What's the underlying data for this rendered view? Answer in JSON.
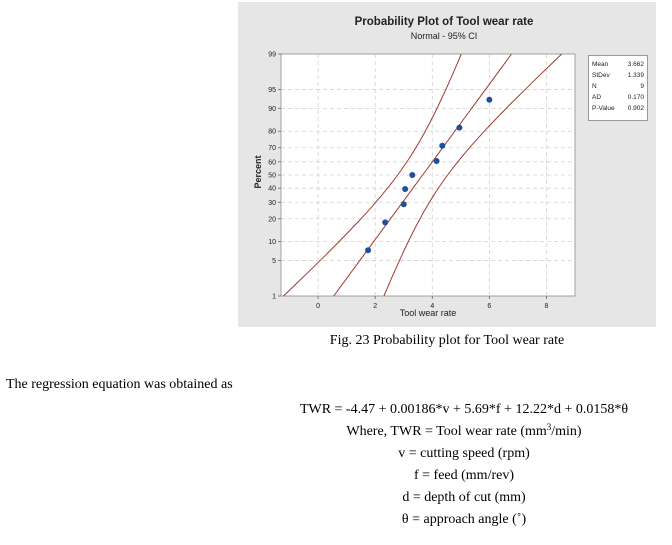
{
  "chart_data": {
    "type": "scatter",
    "title": "Probability Plot of Tool wear rate",
    "subtitle": "Normal - 95% CI",
    "xlabel": "Tool wear rate",
    "ylabel": "Percent",
    "x_ticks": [
      "0",
      "2",
      "4",
      "6",
      "8"
    ],
    "y_ticks": [
      "1",
      "5",
      "10",
      "20",
      "30",
      "40",
      "50",
      "60",
      "70",
      "80",
      "90",
      "95",
      "99"
    ],
    "xlim": [
      -1.3,
      9.0
    ],
    "ylim": [
      1,
      99
    ],
    "y_scale": "normal probability",
    "grid": true,
    "points": [
      {
        "x": 1.75,
        "y": 7.4
      },
      {
        "x": 2.35,
        "y": 18.1
      },
      {
        "x": 3.0,
        "y": 28.7
      },
      {
        "x": 3.05,
        "y": 39.4
      },
      {
        "x": 3.3,
        "y": 50.0
      },
      {
        "x": 4.15,
        "y": 60.6
      },
      {
        "x": 4.35,
        "y": 71.3
      },
      {
        "x": 4.95,
        "y": 81.9
      },
      {
        "x": 6.0,
        "y": 92.6
      }
    ],
    "fit": {
      "mean": 3.662,
      "stdev": 1.339
    },
    "stats": [
      {
        "label": "Mean",
        "value": "3.662"
      },
      {
        "label": "StDev",
        "value": "1.339"
      },
      {
        "label": "N",
        "value": "9"
      },
      {
        "label": "AD",
        "value": "0.170"
      },
      {
        "label": "P-Value",
        "value": "0.902"
      }
    ],
    "colors": {
      "points": "#1f4e9a",
      "lines": "#a23a32",
      "panel": "#e6e6e6",
      "grid": "#d2d2d2"
    }
  },
  "document": {
    "caption": "Fig. 23 Probability plot for Tool wear rate",
    "intro": "The regression equation was obtained as",
    "equation": "TWR = -4.47 + 0.00186*v + 5.69*f + 12.22*d + 0.0158*θ",
    "where_prefix": "Where, TWR = Tool wear rate (mm",
    "where_sup": "3",
    "where_suffix": "/min)",
    "definitions": [
      "v = cutting speed (rpm)",
      "f = feed (mm/rev)",
      "d = depth of cut (mm)",
      "θ = approach angle (˚)"
    ]
  }
}
